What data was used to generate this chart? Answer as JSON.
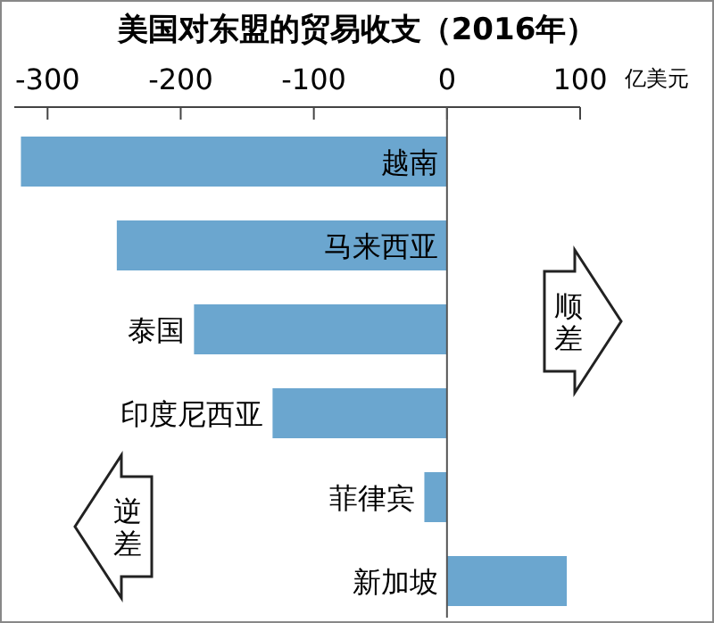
{
  "chart_data": {
    "type": "bar",
    "orientation": "horizontal",
    "title": "美国对东盟的贸易收支（2016年）",
    "xlabel": "亿美元",
    "categories": [
      "越南",
      "马来西亚",
      "泰国",
      "印度尼西亚",
      "菲律宾",
      "新加坡"
    ],
    "values": [
      -320,
      -248,
      -190,
      -131,
      -17,
      90
    ],
    "color": "#6ba6cf",
    "xlim": [
      -325,
      100
    ],
    "xticks": [
      -300,
      -200,
      -100,
      0,
      100
    ],
    "annotations": [
      "顺差",
      "逆差"
    ]
  }
}
